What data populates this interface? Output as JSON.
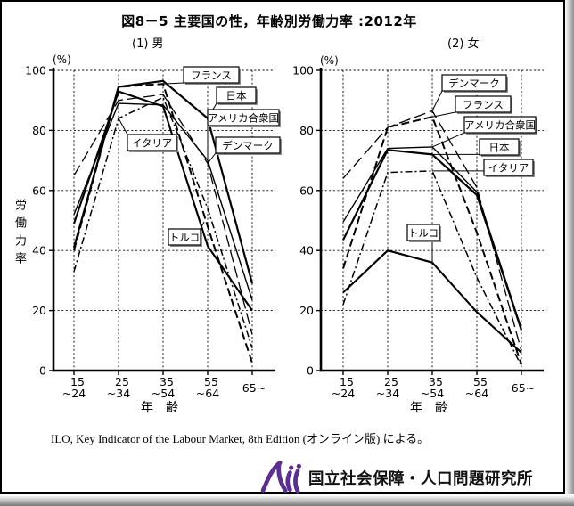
{
  "page": {
    "title": "図8－5 主要国の性，年齢別労働力率 :2012年",
    "source": "ILO, Key Indicator of the Labour Market, 8th Edition (オンライン版) による。",
    "footer_org": "国立社会保障・人口問題研究所",
    "logo_color": "#5b2e91"
  },
  "axes": {
    "ylabel": "労働力率",
    "xlabel": "年　齢",
    "unit": "(%)",
    "ylim": [
      0,
      100
    ],
    "yticks": [
      0,
      20,
      40,
      60,
      80,
      100
    ],
    "categories_lines": [
      [
        "15",
        "~24"
      ],
      [
        "25",
        "~34"
      ],
      [
        "35",
        "~54"
      ],
      [
        "55",
        "~64"
      ],
      [
        "65~"
      ]
    ]
  },
  "chart_data": [
    {
      "type": "line",
      "panel_label": "(1) 男",
      "ylabel": "労働力率",
      "unit": "(%)",
      "ylim": [
        0,
        100
      ],
      "grid": true,
      "categories": [
        "15~24",
        "25~34",
        "35~54",
        "55~64",
        "65~"
      ],
      "series": [
        {
          "name": "日本",
          "values": [
            41,
            94.5,
            96.5,
            84,
            29
          ]
        },
        {
          "name": "フランス",
          "values": [
            40,
            94.5,
            95.5,
            48,
            2.5
          ]
        },
        {
          "name": "アメリカ合衆国",
          "values": [
            52,
            89,
            88.5,
            70,
            23.5
          ]
        },
        {
          "name": "イタリア",
          "values": [
            33,
            84,
            91,
            54,
            7.5
          ]
        },
        {
          "name": "デンマーク",
          "values": [
            65,
            90,
            92,
            69,
            12
          ]
        },
        {
          "name": "トルコ",
          "values": [
            49,
            93,
            88,
            41.5,
            20
          ]
        }
      ],
      "annotations": [
        {
          "text": "フランス",
          "series": "フランス",
          "point": 2
        },
        {
          "text": "日本",
          "series": "日本",
          "point": 3
        },
        {
          "text": "アメリカ合衆国",
          "series": "アメリカ合衆国",
          "point": 3
        },
        {
          "text": "イタリア",
          "series": "イタリア",
          "point": 1
        },
        {
          "text": "デンマーク",
          "series": "デンマーク",
          "point": 3
        },
        {
          "text": "トルコ",
          "series": "トルコ",
          "point": 3
        }
      ]
    },
    {
      "type": "line",
      "panel_label": "(2) 女",
      "ylabel": "労働力率",
      "unit": "(%)",
      "ylim": [
        0,
        100
      ],
      "grid": true,
      "categories": [
        "15~24",
        "25~34",
        "35~54",
        "55~64",
        "65~"
      ],
      "series": [
        {
          "name": "日本",
          "values": [
            43.5,
            73.5,
            72,
            58.5,
            13.5
          ]
        },
        {
          "name": "フランス",
          "values": [
            34,
            81,
            84.5,
            46,
            2
          ]
        },
        {
          "name": "アメリカ合衆国",
          "values": [
            49.5,
            74,
            74.5,
            59.5,
            14
          ]
        },
        {
          "name": "イタリア",
          "values": [
            22,
            66,
            66.5,
            31,
            1.5
          ]
        },
        {
          "name": "デンマーク",
          "values": [
            64,
            81,
            86.5,
            61,
            6.5
          ]
        },
        {
          "name": "トルコ",
          "values": [
            26,
            40,
            36,
            19.5,
            6
          ]
        }
      ],
      "annotations": [
        {
          "text": "デンマーク",
          "series": "デンマーク",
          "point": 2
        },
        {
          "text": "フランス",
          "series": "フランス",
          "point": 2
        },
        {
          "text": "アメリカ合衆国",
          "series": "アメリカ合衆国",
          "point": 2
        },
        {
          "text": "日本",
          "series": "日本",
          "point": 2
        },
        {
          "text": "イタリア",
          "series": "イタリア",
          "point": 2
        },
        {
          "text": "トルコ",
          "series": "トルコ",
          "point": 2
        }
      ]
    }
  ]
}
